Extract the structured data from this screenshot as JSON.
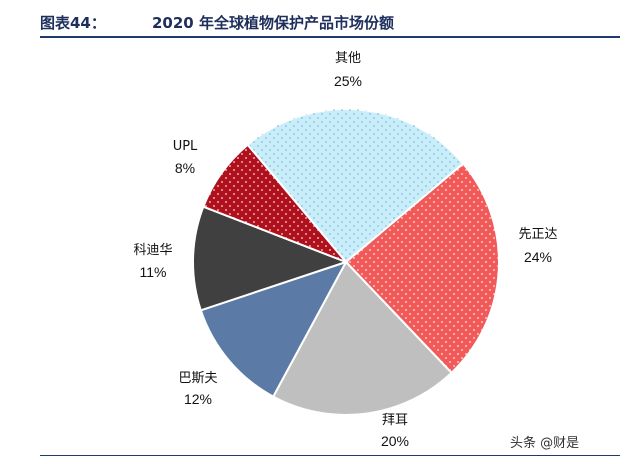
{
  "header": {
    "figure_label": "图表44：",
    "title": "2020 年全球植物保护产品市场份额"
  },
  "watermark": "头条 @财是",
  "chart_data": {
    "type": "pie",
    "title": "2020 年全球植物保护产品市场份额",
    "slices": [
      {
        "label": "其他",
        "pct_label": "25%",
        "value": 25,
        "color": "#c9eefa",
        "pattern": "dots-blue"
      },
      {
        "label": "先正达",
        "pct_label": "24%",
        "value": 24,
        "color": "#f25a5a",
        "pattern": "dots-white"
      },
      {
        "label": "拜耳",
        "pct_label": "20%",
        "value": 20,
        "color": "#bfbfbf",
        "pattern": "none"
      },
      {
        "label": "巴斯夫",
        "pct_label": "12%",
        "value": 12,
        "color": "#5b7ba6",
        "pattern": "none"
      },
      {
        "label": "科迪华",
        "pct_label": "11%",
        "value": 11,
        "color": "#404040",
        "pattern": "none"
      },
      {
        "label": "UPL",
        "pct_label": "8%",
        "value": 8,
        "color": "#b0101c",
        "pattern": "dots-white"
      }
    ],
    "start_angle_deg": -40
  }
}
